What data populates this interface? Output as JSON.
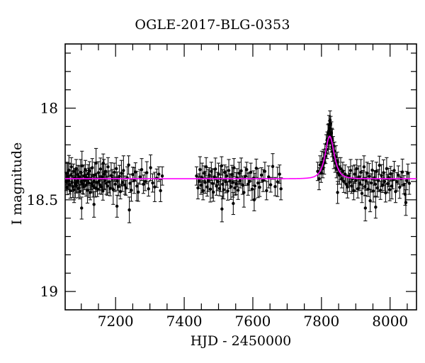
{
  "figure": {
    "background": "#ffffff",
    "frame_color": "#000000",
    "text_color": "#000000"
  },
  "chart_data": {
    "type": "scatter",
    "title": "OGLE-2017-BLG-0353",
    "xlabel": "HJD - 2450000",
    "ylabel": "I magnitude",
    "xlim": [
      7053,
      8077
    ],
    "ylim_mag": [
      17.65,
      19.1
    ],
    "y_axis_inverted": true,
    "grid": false,
    "legend": "none",
    "x_ticks": [
      {
        "value": 7200,
        "label": "7200"
      },
      {
        "value": 7400,
        "label": "7400"
      },
      {
        "value": 7600,
        "label": "7600"
      },
      {
        "value": 7800,
        "label": "7800"
      },
      {
        "value": 8000,
        "label": "8000"
      }
    ],
    "x_minor_step": 50,
    "y_ticks": [
      {
        "value": 18,
        "label": "18"
      },
      {
        "value": 18.5,
        "label": "18.5"
      },
      {
        "value": 19,
        "label": "19"
      }
    ],
    "y_minor_step": 0.1,
    "marker_color": "#000000",
    "errorbar_color": "#111111",
    "model_color": "#ff00ff",
    "model": {
      "kind": "paczynski_microlensing",
      "baseline_mag": 18.385,
      "t0": 7824,
      "tE": 14,
      "u0": 1.18,
      "peak_mag": 18.153
    },
    "points": [
      [
        7056,
        18.4,
        0.05
      ],
      [
        7058,
        18.355,
        0.06
      ],
      [
        7059,
        18.432,
        0.04
      ],
      [
        7061,
        18.372,
        0.07
      ],
      [
        7063,
        18.395,
        0.05
      ],
      [
        7064,
        18.338,
        0.08
      ],
      [
        7066,
        18.418,
        0.05
      ],
      [
        7068,
        18.451,
        0.04
      ],
      [
        7070,
        18.365,
        0.06
      ],
      [
        7071,
        18.32,
        0.05
      ],
      [
        7073,
        18.405,
        0.05
      ],
      [
        7075,
        18.428,
        0.06
      ],
      [
        7077,
        18.345,
        0.04
      ],
      [
        7079,
        18.445,
        0.07
      ],
      [
        7081,
        18.382,
        0.05
      ],
      [
        7083,
        18.41,
        0.08
      ],
      [
        7085,
        18.33,
        0.05
      ],
      [
        7086,
        18.423,
        0.04
      ],
      [
        7088,
        18.398,
        0.06
      ],
      [
        7090,
        18.362,
        0.05
      ],
      [
        7092,
        18.438,
        0.05
      ],
      [
        7094,
        18.375,
        0.06
      ],
      [
        7096,
        18.455,
        0.04
      ],
      [
        7098,
        18.35,
        0.07
      ],
      [
        7100,
        18.402,
        0.05
      ],
      [
        7101,
        18.545,
        0.06
      ],
      [
        7102,
        18.315,
        0.08
      ],
      [
        7104,
        18.415,
        0.05
      ],
      [
        7106,
        18.43,
        0.04
      ],
      [
        7108,
        18.37,
        0.06
      ],
      [
        7110,
        18.395,
        0.05
      ],
      [
        7112,
        18.335,
        0.05
      ],
      [
        7114,
        18.42,
        0.06
      ],
      [
        7116,
        18.38,
        0.04
      ],
      [
        7118,
        18.448,
        0.07
      ],
      [
        7120,
        18.358,
        0.05
      ],
      [
        7122,
        18.408,
        0.08
      ],
      [
        7124,
        18.342,
        0.05
      ],
      [
        7126,
        18.46,
        0.04
      ],
      [
        7128,
        18.385,
        0.06
      ],
      [
        7130,
        18.412,
        0.05
      ],
      [
        7132,
        18.325,
        0.05
      ],
      [
        7134,
        18.425,
        0.06
      ],
      [
        7136,
        18.4,
        0.04
      ],
      [
        7137,
        18.525,
        0.07
      ],
      [
        7139,
        18.365,
        0.07
      ],
      [
        7141,
        18.435,
        0.05
      ],
      [
        7143,
        18.3,
        0.08
      ],
      [
        7145,
        18.405,
        0.05
      ],
      [
        7147,
        18.442,
        0.04
      ],
      [
        7150,
        18.352,
        0.06
      ],
      [
        7152,
        18.398,
        0.05
      ],
      [
        7154,
        18.418,
        0.05
      ],
      [
        7156,
        18.332,
        0.06
      ],
      [
        7159,
        18.43,
        0.04
      ],
      [
        7161,
        18.375,
        0.07
      ],
      [
        7163,
        18.452,
        0.05
      ],
      [
        7164,
        18.3,
        0.05
      ],
      [
        7166,
        18.36,
        0.08
      ],
      [
        7168,
        18.395,
        0.05
      ],
      [
        7171,
        18.345,
        0.04
      ],
      [
        7173,
        18.41,
        0.06
      ],
      [
        7176,
        18.425,
        0.05
      ],
      [
        7178,
        18.32,
        0.05
      ],
      [
        7181,
        18.402,
        0.06
      ],
      [
        7184,
        18.438,
        0.04
      ],
      [
        7187,
        18.368,
        0.07
      ],
      [
        7190,
        18.385,
        0.05
      ],
      [
        7193,
        18.445,
        0.08
      ],
      [
        7196,
        18.35,
        0.05
      ],
      [
        7199,
        18.415,
        0.04
      ],
      [
        7202,
        18.33,
        0.06
      ],
      [
        7204,
        18.535,
        0.06
      ],
      [
        7205,
        18.398,
        0.05
      ],
      [
        7208,
        18.428,
        0.05
      ],
      [
        7211,
        18.372,
        0.06
      ],
      [
        7214,
        18.455,
        0.04
      ],
      [
        7217,
        18.355,
        0.07
      ],
      [
        7220,
        18.405,
        0.05
      ],
      [
        7223,
        18.34,
        0.08
      ],
      [
        7227,
        18.42,
        0.05
      ],
      [
        7230,
        18.435,
        0.04
      ],
      [
        7234,
        18.38,
        0.06
      ],
      [
        7238,
        18.31,
        0.05
      ],
      [
        7240,
        18.555,
        0.07
      ],
      [
        7242,
        18.41,
        0.05
      ],
      [
        7246,
        18.448,
        0.06
      ],
      [
        7250,
        18.362,
        0.04
      ],
      [
        7254,
        18.395,
        0.07
      ],
      [
        7258,
        18.348,
        0.05
      ],
      [
        7262,
        18.425,
        0.08
      ],
      [
        7266,
        18.458,
        0.05
      ],
      [
        7271,
        18.375,
        0.04
      ],
      [
        7276,
        18.335,
        0.06
      ],
      [
        7281,
        18.415,
        0.05
      ],
      [
        7286,
        18.4,
        0.05
      ],
      [
        7291,
        18.352,
        0.06
      ],
      [
        7296,
        18.44,
        0.04
      ],
      [
        7302,
        18.325,
        0.07
      ],
      [
        7308,
        18.408,
        0.05
      ],
      [
        7314,
        18.43,
        0.08
      ],
      [
        7320,
        18.382,
        0.05
      ],
      [
        7326,
        18.36,
        0.04
      ],
      [
        7331,
        18.45,
        0.06
      ],
      [
        7336,
        18.37,
        0.05
      ],
      [
        7436,
        18.37,
        0.05
      ],
      [
        7440,
        18.435,
        0.06
      ],
      [
        7443,
        18.398,
        0.04
      ],
      [
        7446,
        18.335,
        0.07
      ],
      [
        7449,
        18.42,
        0.05
      ],
      [
        7452,
        18.38,
        0.08
      ],
      [
        7455,
        18.45,
        0.05
      ],
      [
        7458,
        18.355,
        0.04
      ],
      [
        7461,
        18.405,
        0.06
      ],
      [
        7464,
        18.32,
        0.05
      ],
      [
        7467,
        18.43,
        0.05
      ],
      [
        7470,
        18.395,
        0.06
      ],
      [
        7473,
        18.365,
        0.04
      ],
      [
        7476,
        18.442,
        0.07
      ],
      [
        7479,
        18.345,
        0.05
      ],
      [
        7482,
        18.41,
        0.08
      ],
      [
        7485,
        18.458,
        0.05
      ],
      [
        7488,
        18.375,
        0.04
      ],
      [
        7491,
        18.332,
        0.06
      ],
      [
        7494,
        18.425,
        0.05
      ],
      [
        7497,
        18.4,
        0.05
      ],
      [
        7500,
        18.36,
        0.06
      ],
      [
        7503,
        18.438,
        0.04
      ],
      [
        7506,
        18.385,
        0.07
      ],
      [
        7509,
        18.315,
        0.05
      ],
      [
        7510,
        18.55,
        0.07
      ],
      [
        7512,
        18.415,
        0.08
      ],
      [
        7515,
        18.445,
        0.05
      ],
      [
        7518,
        18.35,
        0.04
      ],
      [
        7521,
        18.402,
        0.06
      ],
      [
        7524,
        18.37,
        0.05
      ],
      [
        7527,
        18.452,
        0.05
      ],
      [
        7530,
        18.34,
        0.06
      ],
      [
        7533,
        18.398,
        0.04
      ],
      [
        7536,
        18.428,
        0.07
      ],
      [
        7539,
        18.362,
        0.05
      ],
      [
        7542,
        18.405,
        0.08
      ],
      [
        7543,
        18.52,
        0.06
      ],
      [
        7545,
        18.325,
        0.05
      ],
      [
        7548,
        18.435,
        0.04
      ],
      [
        7551,
        18.412,
        0.06
      ],
      [
        7554,
        18.38,
        0.05
      ],
      [
        7557,
        18.448,
        0.05
      ],
      [
        7560,
        18.355,
        0.06
      ],
      [
        7563,
        18.395,
        0.04
      ],
      [
        7566,
        18.342,
        0.07
      ],
      [
        7570,
        18.42,
        0.05
      ],
      [
        7574,
        18.46,
        0.08
      ],
      [
        7578,
        18.372,
        0.05
      ],
      [
        7582,
        18.335,
        0.04
      ],
      [
        7586,
        18.415,
        0.06
      ],
      [
        7590,
        18.4,
        0.05
      ],
      [
        7594,
        18.35,
        0.05
      ],
      [
        7598,
        18.442,
        0.06
      ],
      [
        7602,
        18.382,
        0.04
      ],
      [
        7604,
        18.5,
        0.06
      ],
      [
        7606,
        18.425,
        0.07
      ],
      [
        7610,
        18.328,
        0.05
      ],
      [
        7615,
        18.408,
        0.08
      ],
      [
        7620,
        18.432,
        0.05
      ],
      [
        7625,
        18.365,
        0.04
      ],
      [
        7630,
        18.395,
        0.06
      ],
      [
        7635,
        18.345,
        0.05
      ],
      [
        7640,
        18.45,
        0.05
      ],
      [
        7646,
        18.375,
        0.06
      ],
      [
        7652,
        18.418,
        0.04
      ],
      [
        7658,
        18.318,
        0.07
      ],
      [
        7665,
        18.428,
        0.05
      ],
      [
        7672,
        18.402,
        0.08
      ],
      [
        7678,
        18.36,
        0.05
      ],
      [
        7682,
        18.44,
        0.06
      ],
      [
        7789,
        18.345,
        0.05
      ],
      [
        7793,
        18.385,
        0.06
      ],
      [
        7796,
        18.31,
        0.05
      ],
      [
        7799,
        18.355,
        0.05
      ],
      [
        7801,
        18.295,
        0.06
      ],
      [
        7804,
        18.33,
        0.05
      ],
      [
        7806,
        18.275,
        0.05
      ],
      [
        7808,
        18.3,
        0.06
      ],
      [
        7810,
        18.245,
        0.05
      ],
      [
        7812,
        18.262,
        0.04
      ],
      [
        7814,
        18.195,
        0.05
      ],
      [
        7816,
        18.225,
        0.05
      ],
      [
        7817,
        18.17,
        0.04
      ],
      [
        7819,
        18.14,
        0.05
      ],
      [
        7820,
        18.19,
        0.06
      ],
      [
        7821,
        18.125,
        0.04
      ],
      [
        7822,
        18.09,
        0.05
      ],
      [
        7823,
        18.175,
        0.05
      ],
      [
        7824,
        18.11,
        0.04
      ],
      [
        7825,
        18.065,
        0.05
      ],
      [
        7826,
        18.145,
        0.05
      ],
      [
        7827,
        18.085,
        0.04
      ],
      [
        7828,
        18.19,
        0.05
      ],
      [
        7829,
        18.135,
        0.06
      ],
      [
        7830,
        18.16,
        0.05
      ],
      [
        7831,
        18.215,
        0.05
      ],
      [
        7832,
        18.175,
        0.06
      ],
      [
        7833,
        18.24,
        0.05
      ],
      [
        7834,
        18.205,
        0.05
      ],
      [
        7836,
        18.27,
        0.06
      ],
      [
        7838,
        18.235,
        0.05
      ],
      [
        7840,
        18.3,
        0.05
      ],
      [
        7842,
        18.265,
        0.06
      ],
      [
        7844,
        18.33,
        0.05
      ],
      [
        7846,
        18.29,
        0.05
      ],
      [
        7847,
        18.46,
        0.06
      ],
      [
        7848,
        18.355,
        0.06
      ],
      [
        7850,
        18.32,
        0.05
      ],
      [
        7853,
        18.365,
        0.05
      ],
      [
        7856,
        18.33,
        0.06
      ],
      [
        7859,
        18.385,
        0.05
      ],
      [
        7862,
        18.345,
        0.05
      ],
      [
        7865,
        18.4,
        0.06
      ],
      [
        7869,
        18.36,
        0.05
      ],
      [
        7872,
        18.415,
        0.05
      ],
      [
        7876,
        18.43,
        0.06
      ],
      [
        7879,
        18.37,
        0.05
      ],
      [
        7882,
        18.405,
        0.05
      ],
      [
        7885,
        18.34,
        0.06
      ],
      [
        7888,
        18.425,
        0.04
      ],
      [
        7891,
        18.385,
        0.07
      ],
      [
        7894,
        18.45,
        0.05
      ],
      [
        7897,
        18.36,
        0.05
      ],
      [
        7900,
        18.395,
        0.06
      ],
      [
        7903,
        18.33,
        0.05
      ],
      [
        7906,
        18.44,
        0.05
      ],
      [
        7909,
        18.375,
        0.06
      ],
      [
        7912,
        18.41,
        0.04
      ],
      [
        7915,
        18.35,
        0.07
      ],
      [
        7918,
        18.465,
        0.05
      ],
      [
        7921,
        18.39,
        0.05
      ],
      [
        7924,
        18.32,
        0.06
      ],
      [
        7927,
        18.428,
        0.05
      ],
      [
        7928,
        18.545,
        0.07
      ],
      [
        7930,
        18.398,
        0.05
      ],
      [
        7933,
        18.355,
        0.06
      ],
      [
        7936,
        18.442,
        0.04
      ],
      [
        7939,
        18.372,
        0.07
      ],
      [
        7942,
        18.505,
        0.06
      ],
      [
        7945,
        18.408,
        0.05
      ],
      [
        7948,
        18.338,
        0.05
      ],
      [
        7951,
        18.452,
        0.06
      ],
      [
        7954,
        18.38,
        0.04
      ],
      [
        7957,
        18.415,
        0.07
      ],
      [
        7958,
        18.54,
        0.06
      ],
      [
        7960,
        18.345,
        0.05
      ],
      [
        7963,
        18.435,
        0.05
      ],
      [
        7966,
        18.395,
        0.06
      ],
      [
        7969,
        18.312,
        0.05
      ],
      [
        7972,
        18.448,
        0.05
      ],
      [
        7975,
        18.368,
        0.06
      ],
      [
        7978,
        18.42,
        0.04
      ],
      [
        7981,
        18.352,
        0.07
      ],
      [
        7984,
        18.4,
        0.05
      ],
      [
        7987,
        18.462,
        0.05
      ],
      [
        7990,
        18.33,
        0.06
      ],
      [
        7993,
        18.412,
        0.05
      ],
      [
        7996,
        18.378,
        0.05
      ],
      [
        7999,
        18.445,
        0.06
      ],
      [
        8002,
        18.358,
        0.04
      ],
      [
        8005,
        18.425,
        0.07
      ],
      [
        8008,
        18.39,
        0.05
      ],
      [
        8012,
        18.34,
        0.05
      ],
      [
        8016,
        18.455,
        0.06
      ],
      [
        8020,
        18.402,
        0.05
      ],
      [
        8024,
        18.365,
        0.05
      ],
      [
        8028,
        18.432,
        0.06
      ],
      [
        8032,
        18.385,
        0.04
      ],
      [
        8036,
        18.348,
        0.07
      ],
      [
        8040,
        18.418,
        0.05
      ],
      [
        8044,
        18.47,
        0.06
      ],
      [
        8046,
        18.515,
        0.07
      ],
      [
        8048,
        18.395,
        0.05
      ],
      [
        8052,
        18.355,
        0.05
      ],
      [
        8056,
        18.41,
        0.06
      ]
    ]
  }
}
